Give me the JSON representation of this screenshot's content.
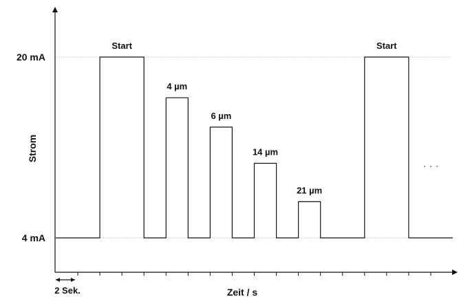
{
  "chart_data": {
    "type": "line",
    "title": "",
    "xlabel": "Zeit / s",
    "ylabel": "Strom",
    "y_ticks": [
      {
        "value": 20,
        "label": "20 mA"
      },
      {
        "value": 4,
        "label": "4 mA"
      }
    ],
    "ylim": [
      -1,
      23
    ],
    "x_units": "2 Sek.",
    "x_tick_step": 1,
    "xlim": [
      0,
      18
    ],
    "x_tick_count": 18,
    "series": [
      {
        "points": [
          [
            0,
            4
          ],
          [
            2,
            4
          ],
          [
            2,
            20
          ],
          [
            4,
            20
          ],
          [
            4,
            4
          ],
          [
            5,
            4
          ],
          [
            5,
            16.4
          ],
          [
            6,
            16.4
          ],
          [
            6,
            4
          ],
          [
            7,
            4
          ],
          [
            7,
            13.8
          ],
          [
            8,
            13.8
          ],
          [
            8,
            4
          ],
          [
            9,
            4
          ],
          [
            9,
            10.6
          ],
          [
            10,
            10.6
          ],
          [
            10,
            4
          ],
          [
            11,
            4
          ],
          [
            11,
            7.2
          ],
          [
            12,
            7.2
          ],
          [
            12,
            4
          ],
          [
            14,
            4
          ],
          [
            14,
            20
          ],
          [
            16,
            20
          ],
          [
            16,
            4
          ],
          [
            18,
            4
          ]
        ]
      }
    ],
    "annotations": [
      {
        "text": "Start",
        "x": 3,
        "y": 20
      },
      {
        "text": "4 µm",
        "x": 5.5,
        "y": 16.4
      },
      {
        "text": "6 µm",
        "x": 7.5,
        "y": 13.8
      },
      {
        "text": "14 µm",
        "x": 9.5,
        "y": 10.6
      },
      {
        "text": "21 µm",
        "x": 11.5,
        "y": 7.2
      },
      {
        "text": "Start",
        "x": 15,
        "y": 20
      }
    ],
    "continuation": "· · ·",
    "grid": "horizontal-dotted"
  }
}
